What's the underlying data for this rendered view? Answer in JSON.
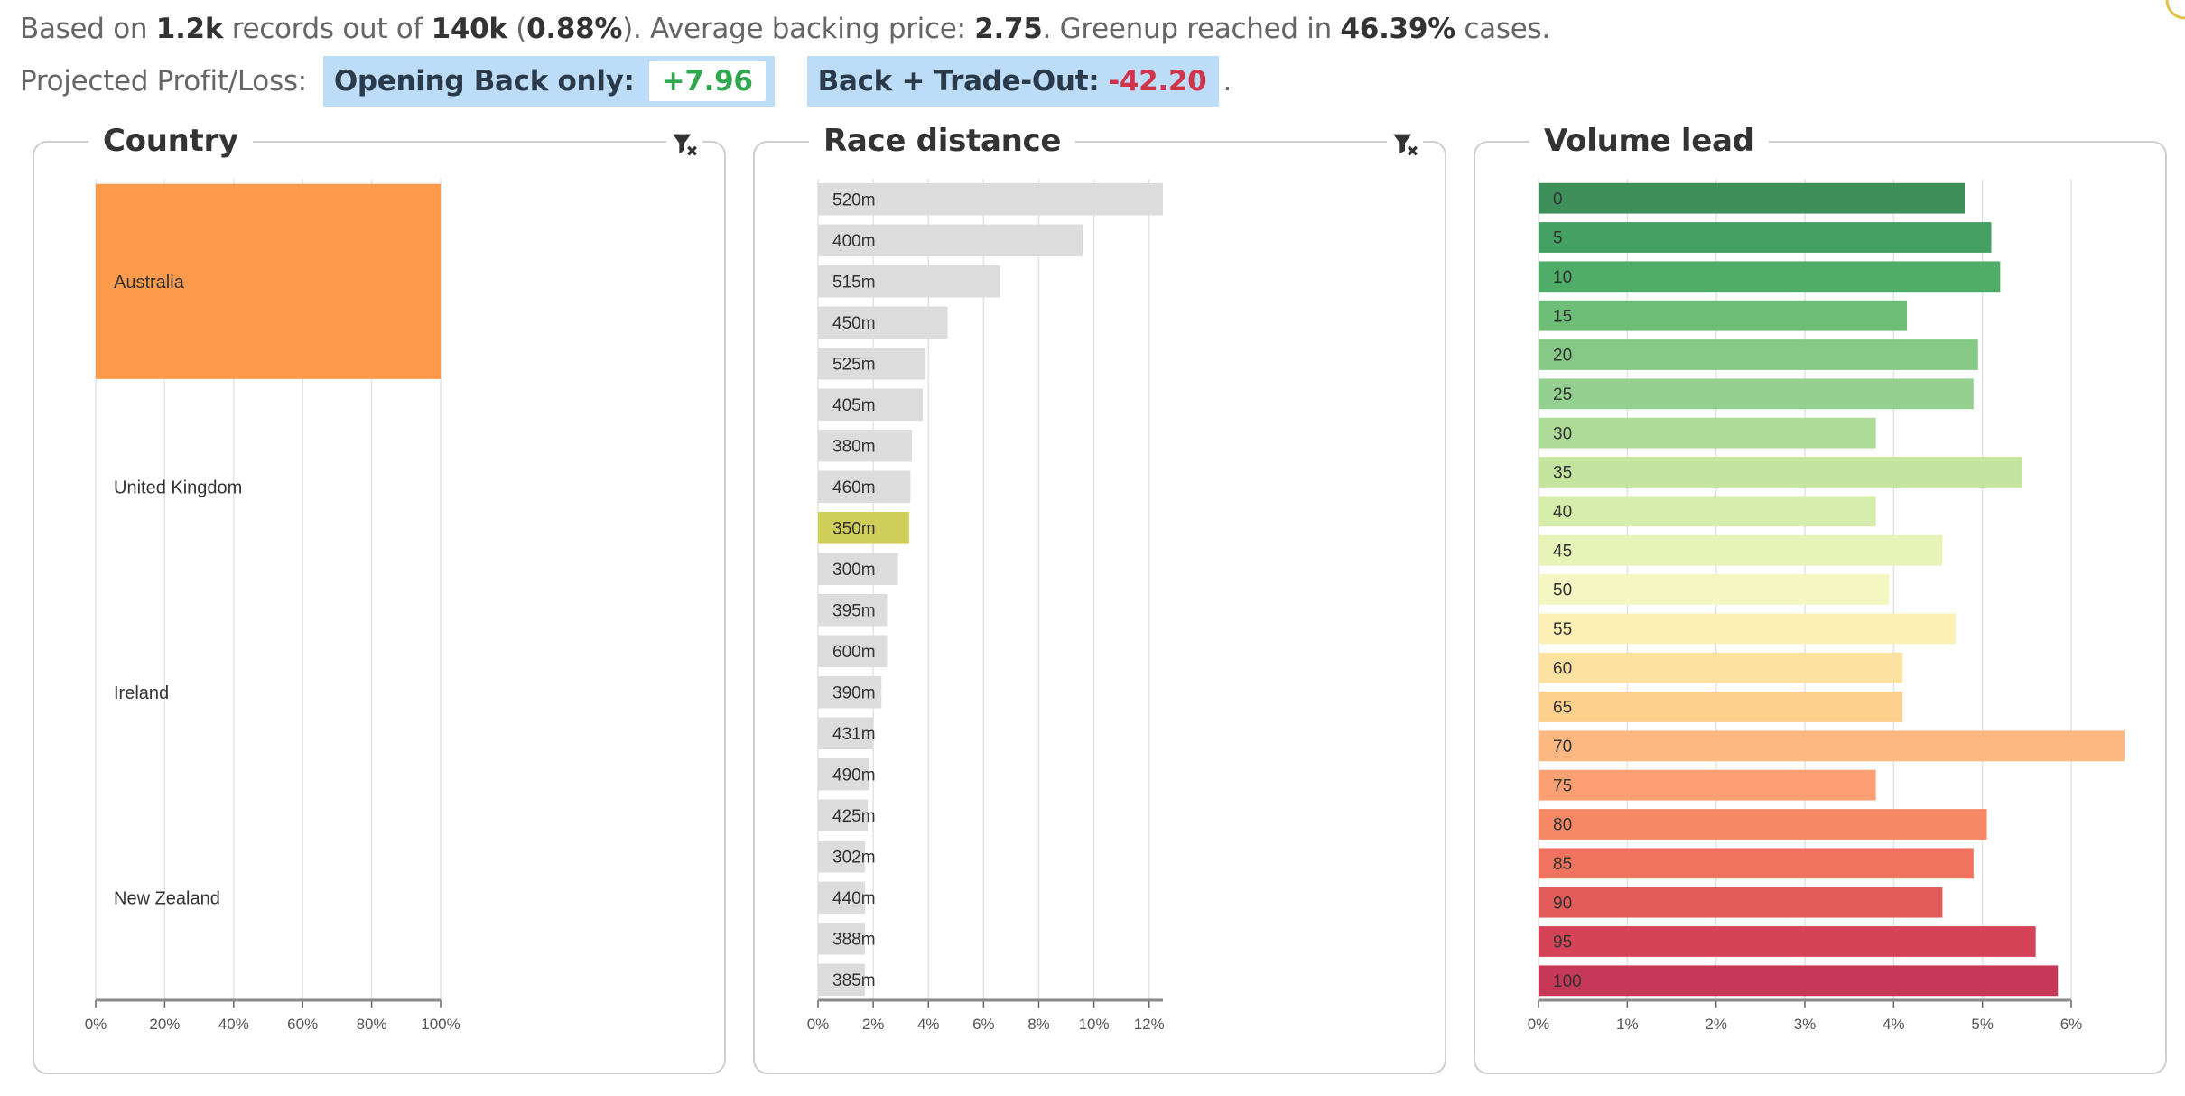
{
  "summary": {
    "prefix": "Based on ",
    "records": "1.2k",
    "mid1": " records out of ",
    "total": "140k",
    "mid2": " (",
    "percent": "0.88%",
    "mid3": "). Average backing price: ",
    "avg_price": "2.75",
    "mid4": ". Greenup reached in ",
    "greenup": "46.39%",
    "suffix": " cases."
  },
  "profit": {
    "label": "Projected Profit/Loss:",
    "opening_label": "Opening Back only:",
    "opening_value": "+7.96",
    "trade_label": "Back + Trade-Out:",
    "trade_value": "-42.20",
    "trailing": "."
  },
  "colors": {
    "country_highlight": "#fd9a4c",
    "distance_bar": "#dcdcdc",
    "distance_highlight": "#cfce59",
    "positive": "#2fa84f",
    "negative": "#d0344b",
    "pl_box": "#bcdcf7"
  },
  "icons": {
    "filter": "filter-clear-icon"
  },
  "chart_data": [
    {
      "type": "bar",
      "orientation": "horizontal",
      "title": "Country",
      "categories": [
        "Australia",
        "United Kingdom",
        "Ireland",
        "New Zealand"
      ],
      "values": [
        100,
        0,
        0,
        0
      ],
      "highlight": "Australia",
      "xlim": [
        0,
        100
      ],
      "ticks": [
        "0%",
        "20%",
        "40%",
        "60%",
        "80%",
        "100%"
      ],
      "grid": true
    },
    {
      "type": "bar",
      "orientation": "horizontal",
      "title": "Race distance",
      "categories": [
        "520m",
        "400m",
        "515m",
        "450m",
        "525m",
        "405m",
        "380m",
        "460m",
        "350m",
        "300m",
        "395m",
        "600m",
        "390m",
        "431m",
        "490m",
        "425m",
        "302m",
        "440m",
        "388m",
        "385m"
      ],
      "values": [
        12.5,
        9.6,
        6.6,
        4.7,
        3.9,
        3.8,
        3.4,
        3.35,
        3.3,
        2.9,
        2.5,
        2.5,
        2.3,
        2.0,
        1.85,
        1.8,
        1.7,
        1.7,
        1.7,
        1.7
      ],
      "highlight": "350m",
      "xlim": [
        0,
        12.5
      ],
      "ticks": [
        "0%",
        "2%",
        "4%",
        "6%",
        "8%",
        "10%",
        "12%"
      ],
      "grid": true
    },
    {
      "type": "bar",
      "orientation": "horizontal",
      "title": "Volume lead",
      "categories": [
        "0",
        "5",
        "10",
        "15",
        "20",
        "25",
        "30",
        "35",
        "40",
        "45",
        "50",
        "55",
        "60",
        "65",
        "70",
        "75",
        "80",
        "85",
        "90",
        "95",
        "100"
      ],
      "values": [
        4.8,
        5.1,
        5.2,
        4.15,
        4.95,
        4.9,
        3.8,
        5.45,
        3.8,
        4.55,
        3.95,
        4.7,
        4.1,
        4.1,
        6.6,
        3.8,
        5.05,
        4.9,
        4.55,
        5.6,
        5.85
      ],
      "colors": [
        "#3f8f5b",
        "#45a064",
        "#4fac69",
        "#6fbe77",
        "#86c987",
        "#94d08f",
        "#aedb98",
        "#c4e59f",
        "#d7edab",
        "#e7f3b7",
        "#f5f7c2",
        "#fdefb5",
        "#fde1a0",
        "#fdd08d",
        "#fdb882",
        "#fc9f73",
        "#f78866",
        "#ef735e",
        "#e35c59",
        "#d44456",
        "#c73858"
      ],
      "xlim": [
        0,
        6.6
      ],
      "ticks": [
        "0%",
        "1%",
        "2%",
        "3%",
        "4%",
        "5%",
        "6%"
      ],
      "grid": true
    }
  ]
}
